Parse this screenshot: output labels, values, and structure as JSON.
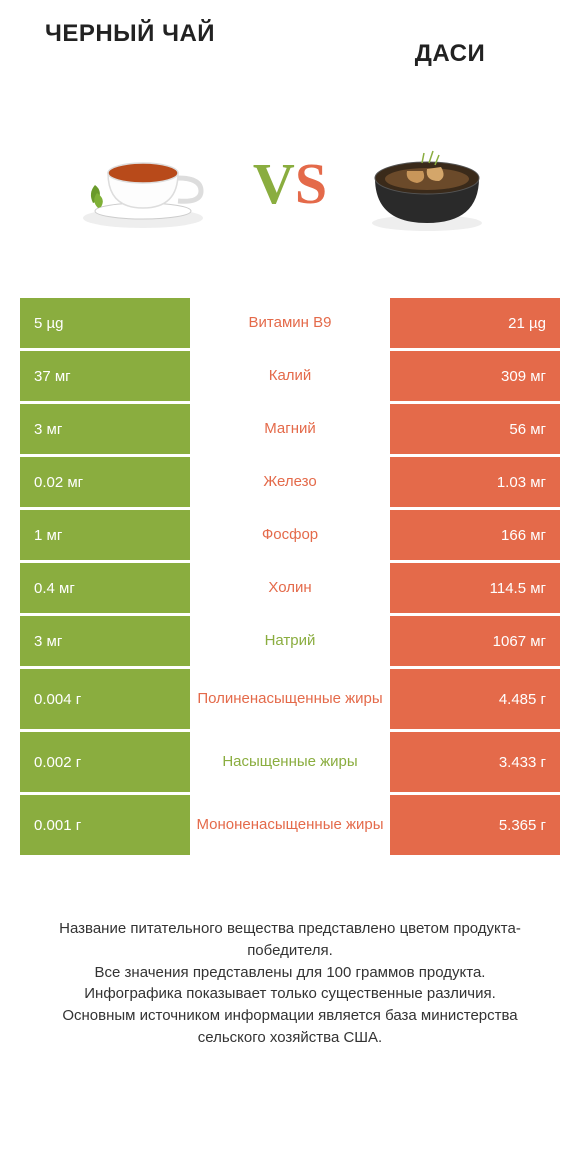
{
  "titles": {
    "left": "ЧЕРНЫЙ ЧАЙ",
    "right": "ДАСИ"
  },
  "vs": {
    "v": "V",
    "s": "S"
  },
  "colors": {
    "left": "#8aad3f",
    "right": "#e46a4a",
    "bg": "#ffffff"
  },
  "rows": [
    {
      "left": "5 µg",
      "mid": "Витамин B9",
      "right": "21 µg",
      "winner": "right",
      "tall": false
    },
    {
      "left": "37 мг",
      "mid": "Калий",
      "right": "309 мг",
      "winner": "right",
      "tall": false
    },
    {
      "left": "3 мг",
      "mid": "Магний",
      "right": "56 мг",
      "winner": "right",
      "tall": false
    },
    {
      "left": "0.02 мг",
      "mid": "Железо",
      "right": "1.03 мг",
      "winner": "right",
      "tall": false
    },
    {
      "left": "1 мг",
      "mid": "Фосфор",
      "right": "166 мг",
      "winner": "right",
      "tall": false
    },
    {
      "left": "0.4 мг",
      "mid": "Холин",
      "right": "114.5 мг",
      "winner": "right",
      "tall": false
    },
    {
      "left": "3 мг",
      "mid": "Натрий",
      "right": "1067 мг",
      "winner": "left",
      "tall": false
    },
    {
      "left": "0.004 г",
      "mid": "Полиненасыщенные жиры",
      "right": "4.485 г",
      "winner": "right",
      "tall": true
    },
    {
      "left": "0.002 г",
      "mid": "Насыщенные жиры",
      "right": "3.433 г",
      "winner": "left",
      "tall": true
    },
    {
      "left": "0.001 г",
      "mid": "Мононенасыщенные жиры",
      "right": "5.365 г",
      "winner": "right",
      "tall": true
    }
  ],
  "footer": "Название питательного вещества представлено цветом продукта-победителя.\nВсе значения представлены для 100 граммов продукта.\nИнфографика показывает только существенные различия.\nОсновным источником информации является база министерства сельского хозяйства США.",
  "icons": {
    "left": "tea-cup",
    "right": "dashi-bowl"
  },
  "typography": {
    "title_fontsize": 24,
    "cell_fontsize": 15,
    "footer_fontsize": 15,
    "vs_fontsize": 58
  }
}
